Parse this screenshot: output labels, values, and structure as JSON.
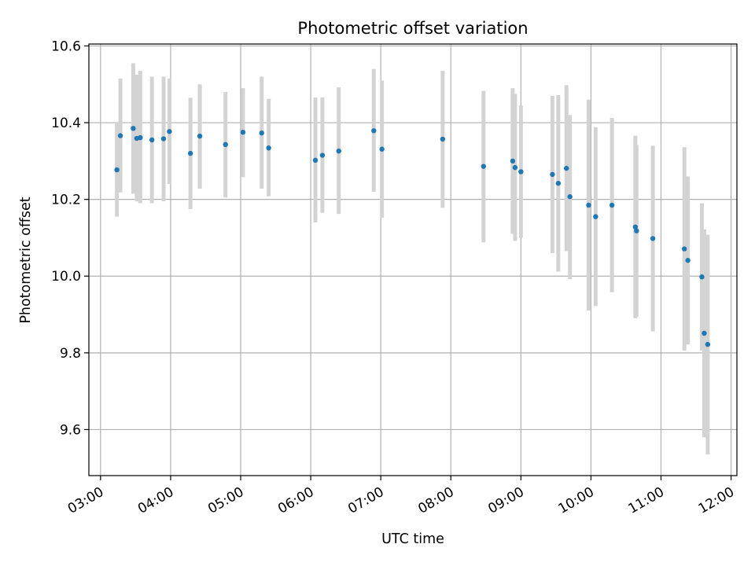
{
  "chart_data": {
    "type": "scatter",
    "title": "Photometric offset variation",
    "xlabel": "UTC time",
    "ylabel": "Photometric offset",
    "xlim": [
      "02:50",
      "12:05"
    ],
    "ylim": [
      9.48,
      10.605
    ],
    "x_ticks": [
      "03:00",
      "04:00",
      "05:00",
      "06:00",
      "07:00",
      "08:00",
      "09:00",
      "10:00",
      "11:00",
      "12:00"
    ],
    "y_ticks": [
      9.6,
      9.8,
      10.0,
      10.2,
      10.4,
      10.6
    ],
    "y_tick_labels": [
      "9.6",
      "9.8",
      "10.0",
      "10.2",
      "10.4",
      "10.6"
    ],
    "grid": true,
    "x_tick_label_rotation_deg": 30,
    "colors": {
      "point": "#1f77b4",
      "errorbar": "#d3d3d3",
      "grid": "#b0b0b0"
    },
    "points": [
      {
        "t": "03:14",
        "y": 10.277,
        "lo": 10.155,
        "hi": 10.4
      },
      {
        "t": "03:17",
        "y": 10.366,
        "lo": 10.218,
        "hi": 10.515
      },
      {
        "t": "03:28",
        "y": 10.385,
        "lo": 10.215,
        "hi": 10.555
      },
      {
        "t": "03:31",
        "y": 10.359,
        "lo": 10.195,
        "hi": 10.525
      },
      {
        "t": "03:34",
        "y": 10.361,
        "lo": 10.19,
        "hi": 10.535
      },
      {
        "t": "03:44",
        "y": 10.355,
        "lo": 10.19,
        "hi": 10.52
      },
      {
        "t": "03:54",
        "y": 10.358,
        "lo": 10.195,
        "hi": 10.52
      },
      {
        "t": "03:59",
        "y": 10.377,
        "lo": 10.24,
        "hi": 10.515
      },
      {
        "t": "04:17",
        "y": 10.32,
        "lo": 10.175,
        "hi": 10.465
      },
      {
        "t": "04:25",
        "y": 10.365,
        "lo": 10.228,
        "hi": 10.5
      },
      {
        "t": "04:47",
        "y": 10.343,
        "lo": 10.205,
        "hi": 10.48
      },
      {
        "t": "05:02",
        "y": 10.375,
        "lo": 10.258,
        "hi": 10.49
      },
      {
        "t": "05:18",
        "y": 10.373,
        "lo": 10.228,
        "hi": 10.52
      },
      {
        "t": "05:24",
        "y": 10.334,
        "lo": 10.208,
        "hi": 10.462
      },
      {
        "t": "06:04",
        "y": 10.302,
        "lo": 10.14,
        "hi": 10.466
      },
      {
        "t": "06:10",
        "y": 10.315,
        "lo": 10.165,
        "hi": 10.466
      },
      {
        "t": "06:24",
        "y": 10.326,
        "lo": 10.162,
        "hi": 10.492
      },
      {
        "t": "06:54",
        "y": 10.379,
        "lo": 10.22,
        "hi": 10.54
      },
      {
        "t": "07:01",
        "y": 10.331,
        "lo": 10.152,
        "hi": 10.51
      },
      {
        "t": "07:53",
        "y": 10.357,
        "lo": 10.178,
        "hi": 10.535
      },
      {
        "t": "08:28",
        "y": 10.286,
        "lo": 10.088,
        "hi": 10.483
      },
      {
        "t": "08:53",
        "y": 10.3,
        "lo": 10.11,
        "hi": 10.49
      },
      {
        "t": "08:55",
        "y": 10.283,
        "lo": 10.092,
        "hi": 10.475
      },
      {
        "t": "09:00",
        "y": 10.272,
        "lo": 10.1,
        "hi": 10.445
      },
      {
        "t": "09:27",
        "y": 10.265,
        "lo": 10.06,
        "hi": 10.47
      },
      {
        "t": "09:32",
        "y": 10.242,
        "lo": 10.012,
        "hi": 10.472
      },
      {
        "t": "09:39",
        "y": 10.281,
        "lo": 10.065,
        "hi": 10.498
      },
      {
        "t": "09:42",
        "y": 10.207,
        "lo": 9.992,
        "hi": 10.42
      },
      {
        "t": "09:58",
        "y": 10.185,
        "lo": 9.91,
        "hi": 10.46
      },
      {
        "t": "10:04",
        "y": 10.155,
        "lo": 9.922,
        "hi": 10.388
      },
      {
        "t": "10:18",
        "y": 10.185,
        "lo": 9.958,
        "hi": 10.412
      },
      {
        "t": "10:38",
        "y": 10.128,
        "lo": 9.89,
        "hi": 10.366
      },
      {
        "t": "10:39",
        "y": 10.118,
        "lo": 9.894,
        "hi": 10.342
      },
      {
        "t": "10:53",
        "y": 10.098,
        "lo": 9.856,
        "hi": 10.34
      },
      {
        "t": "11:20",
        "y": 10.071,
        "lo": 9.806,
        "hi": 10.336
      },
      {
        "t": "11:23",
        "y": 10.041,
        "lo": 9.822,
        "hi": 10.26
      },
      {
        "t": "11:35",
        "y": 9.998,
        "lo": 9.806,
        "hi": 10.19
      },
      {
        "t": "11:37",
        "y": 9.851,
        "lo": 9.58,
        "hi": 10.122
      },
      {
        "t": "11:40",
        "y": 9.822,
        "lo": 9.535,
        "hi": 10.108
      }
    ]
  }
}
